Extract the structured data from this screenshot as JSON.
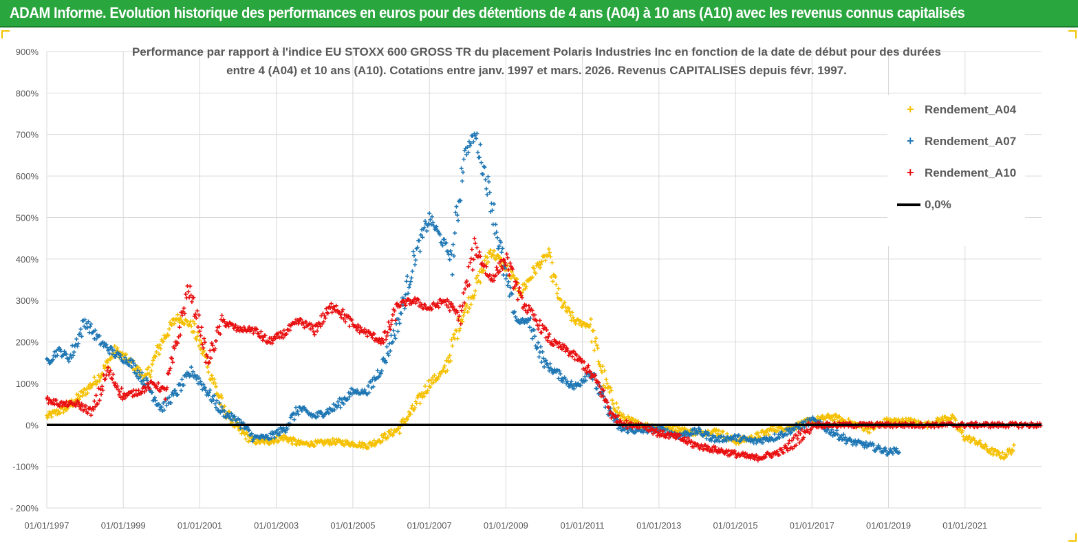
{
  "header": {
    "title": "ADAM Informe. Evolution historique des performances en euros pour des détentions de 4 ans (A04) à 10 ans (A10) avec les revenus connus capitalisés"
  },
  "colors": {
    "header_bg": "#2aa63e",
    "a04": "#f5c000",
    "a07": "#1f77b4",
    "a10": "#e81010",
    "zero": "#000000",
    "grid": "#d9d9d9",
    "axis_text": "#595959"
  },
  "chart_data": {
    "type": "scatter",
    "title_line1": "Performance par rapport à l'indice EU STOXX 600 GROSS TR  du placement Polaris Industries Inc en fonction de la date de début pour des durées",
    "title_line2": "entre 4 (A04) et 10 ans (A10). Cotations entre janv. 1997 et mars. 2026. Revenus CAPITALISES depuis févr. 1997.",
    "xlabel": "",
    "ylabel": "",
    "ylim": [
      -200,
      900
    ],
    "xlim": [
      1997.0,
      2023.0
    ],
    "y_ticks": [
      "900%",
      "800%",
      "700%",
      "600%",
      "500%",
      "400%",
      "300%",
      "200%",
      "100%",
      "0%",
      "-100%",
      "- 200%"
    ],
    "y_tick_values": [
      900,
      800,
      700,
      600,
      500,
      400,
      300,
      200,
      100,
      0,
      -100,
      -200
    ],
    "x_ticks": [
      "01/01/1997",
      "01/01/1999",
      "01/01/2001",
      "01/01/2003",
      "01/01/2005",
      "01/01/2007",
      "01/01/2009",
      "01/01/2011",
      "01/01/2013",
      "01/01/2015",
      "01/01/2017",
      "01/01/2019",
      "01/01/2021"
    ],
    "x_tick_values": [
      1997,
      1999,
      2001,
      2003,
      2005,
      2007,
      2009,
      2011,
      2013,
      2015,
      2017,
      2019,
      2021
    ],
    "legend": [
      "Rendement_A04",
      "Rendement_A07",
      "Rendement_A10",
      "0,0%"
    ],
    "series": [
      {
        "name": "Rendement_A04",
        "color": "#f5c000",
        "x": [
          1997.0,
          1997.5,
          1998.0,
          1998.4,
          1998.8,
          1999.2,
          1999.6,
          2000.0,
          2000.4,
          2000.8,
          2001.2,
          2001.6,
          2002.0,
          2002.4,
          2002.8,
          2003.2,
          2003.6,
          2004.0,
          2004.5,
          2005.0,
          2005.4,
          2005.8,
          2006.2,
          2006.6,
          2007.0,
          2007.4,
          2007.8,
          2008.2,
          2008.6,
          2009.0,
          2009.4,
          2009.8,
          2010.1,
          2010.4,
          2010.8,
          2011.2,
          2011.6,
          2012.0,
          2012.5,
          2013.0,
          2013.5,
          2014.0,
          2014.5,
          2015.0,
          2015.5,
          2016.0,
          2016.5,
          2017.0,
          2017.5,
          2018.0,
          2018.5,
          2019.0,
          2019.5,
          2020.0,
          2020.3,
          2020.6,
          2021.0,
          2021.3,
          2021.6,
          2022.0,
          2022.3
        ],
        "y": [
          20,
          40,
          80,
          120,
          180,
          150,
          110,
          200,
          260,
          240,
          150,
          40,
          -10,
          -40,
          -40,
          -30,
          -45,
          -45,
          -40,
          -45,
          -50,
          -30,
          -10,
          40,
          100,
          130,
          250,
          330,
          420,
          380,
          320,
          380,
          410,
          300,
          250,
          240,
          100,
          20,
          0,
          -5,
          -10,
          -20,
          -15,
          -40,
          -30,
          -10,
          -5,
          10,
          20,
          5,
          -10,
          10,
          10,
          0,
          10,
          20,
          -30,
          -40,
          -60,
          -75,
          -55
        ]
      },
      {
        "name": "Rendement_A07",
        "color": "#1f77b4",
        "x": [
          1997.0,
          1997.3,
          1997.6,
          1998.0,
          1998.4,
          1998.8,
          1999.2,
          1999.6,
          2000.0,
          2000.4,
          2000.8,
          2001.2,
          2001.6,
          2002.0,
          2002.4,
          2002.8,
          2003.2,
          2003.6,
          2004.0,
          2004.5,
          2005.0,
          2005.4,
          2005.8,
          2006.2,
          2006.6,
          2007.0,
          2007.3,
          2007.6,
          2007.9,
          2008.2,
          2008.6,
          2009.0,
          2009.3,
          2009.6,
          2010.0,
          2010.4,
          2010.8,
          2011.2,
          2011.6,
          2012.0,
          2012.5,
          2013.0,
          2013.5,
          2014.0,
          2014.5,
          2015.0,
          2015.5,
          2016.0,
          2016.5,
          2017.0,
          2017.5,
          2018.0,
          2018.5,
          2019.0,
          2019.3
        ],
        "y": [
          150,
          180,
          160,
          250,
          200,
          170,
          150,
          100,
          40,
          80,
          130,
          80,
          30,
          10,
          -30,
          -30,
          -10,
          40,
          20,
          40,
          80,
          80,
          150,
          250,
          400,
          500,
          450,
          400,
          650,
          700,
          550,
          350,
          250,
          250,
          150,
          120,
          90,
          130,
          50,
          -10,
          -15,
          -10,
          -25,
          -15,
          -35,
          -30,
          -40,
          -30,
          -10,
          10,
          -15,
          -40,
          -50,
          -65,
          -60
        ]
      },
      {
        "name": "Rendement_A10",
        "color": "#e81010",
        "x": [
          1997.0,
          1997.4,
          1997.8,
          1998.2,
          1998.6,
          1999.0,
          1999.4,
          1999.8,
          2000.1,
          2000.4,
          2000.7,
          2001.0,
          2001.2,
          2001.6,
          2002.0,
          2002.4,
          2002.8,
          2003.2,
          2003.6,
          2004.0,
          2004.5,
          2005.0,
          2005.4,
          2005.8,
          2006.2,
          2006.6,
          2007.0,
          2007.4,
          2007.8,
          2008.2,
          2008.6,
          2009.0,
          2009.4,
          2009.8,
          2010.2,
          2010.6,
          2011.0,
          2011.4,
          2011.8,
          2012.2,
          2012.6,
          2013.0,
          2013.5,
          2014.0,
          2014.5,
          2015.0,
          2015.5,
          2016.0,
          2016.3,
          2017.0,
          2018.0,
          2019.0,
          2020.0,
          2021.0,
          2022.0,
          2023.0
        ],
        "y": [
          60,
          50,
          50,
          30,
          130,
          70,
          80,
          100,
          80,
          200,
          330,
          240,
          150,
          250,
          230,
          230,
          200,
          220,
          250,
          230,
          290,
          240,
          220,
          200,
          290,
          300,
          280,
          300,
          260,
          430,
          350,
          400,
          300,
          250,
          200,
          180,
          150,
          100,
          20,
          0,
          0,
          -20,
          -30,
          -50,
          -60,
          -70,
          -80,
          -70,
          -60,
          0,
          0,
          0,
          0,
          0,
          0,
          0
        ]
      }
    ],
    "zero_line": {
      "name": "0,0%",
      "y": 0
    }
  }
}
